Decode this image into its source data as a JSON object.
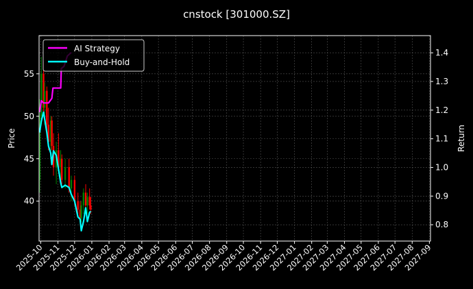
{
  "chart_data": {
    "type": "line",
    "title": "cnstock [301000.SZ]",
    "ylabel_left": "Price",
    "ylabel_right": "Return",
    "xlim": [
      "2025-09-28",
      "2027-09-03"
    ],
    "ylim_left": [
      35.3,
      59.5
    ],
    "ylim_right": [
      0.743,
      1.46
    ],
    "yticks_left": [
      40,
      45,
      50,
      55
    ],
    "yticks_right": [
      0.8,
      0.9,
      1.0,
      1.1,
      1.2,
      1.3,
      1.4
    ],
    "xticks": [
      "2025-10",
      "2025-11",
      "2025-12",
      "2026-01",
      "2026-02",
      "2026-03",
      "2026-04",
      "2026-05",
      "2026-06",
      "2026-07",
      "2026-08",
      "2026-09",
      "2026-10",
      "2026-11",
      "2026-12",
      "2027-01",
      "2027-02",
      "2027-03",
      "2027-04",
      "2027-05",
      "2027-06",
      "2027-07",
      "2027-08",
      "2027-09"
    ],
    "grid": true,
    "legend_placement": "top-left",
    "colors": {
      "background": "#000000",
      "up": "#008000",
      "down": "#ff0000",
      "ai": "#ff00ff",
      "bh": "#00ffff",
      "grid": "#555555"
    },
    "candles": [
      {
        "date": "2025-09-29",
        "o": 42.5,
        "h": 52,
        "l": 41,
        "c": 50
      },
      {
        "date": "2025-10-02",
        "o": 50,
        "h": 57,
        "l": 49,
        "c": 55
      },
      {
        "date": "2025-10-06",
        "o": 55,
        "h": 56.5,
        "l": 50,
        "c": 51
      },
      {
        "date": "2025-10-08",
        "o": 51,
        "h": 54,
        "l": 49,
        "c": 53
      },
      {
        "date": "2025-10-12",
        "o": 53,
        "h": 53.5,
        "l": 48,
        "c": 49
      },
      {
        "date": "2025-10-15",
        "o": 49,
        "h": 51,
        "l": 46,
        "c": 47
      },
      {
        "date": "2025-10-19",
        "o": 47,
        "h": 50,
        "l": 45,
        "c": 49.5
      },
      {
        "date": "2025-10-21",
        "o": 49.5,
        "h": 50,
        "l": 46,
        "c": 46.5
      },
      {
        "date": "2025-10-24",
        "o": 46.5,
        "h": 48,
        "l": 43,
        "c": 44
      },
      {
        "date": "2025-10-29",
        "o": 44,
        "h": 47,
        "l": 42,
        "c": 46
      },
      {
        "date": "2025-11-02",
        "o": 46,
        "h": 48,
        "l": 43.5,
        "c": 44
      },
      {
        "date": "2025-11-06",
        "o": 44,
        "h": 46,
        "l": 42,
        "c": 45
      },
      {
        "date": "2025-11-08",
        "o": 45,
        "h": 45.5,
        "l": 42,
        "c": 42.5
      },
      {
        "date": "2025-11-14",
        "o": 42.5,
        "h": 45,
        "l": 41.5,
        "c": 44
      },
      {
        "date": "2025-11-21",
        "o": 44,
        "h": 45,
        "l": 41,
        "c": 41.5
      },
      {
        "date": "2025-11-25",
        "o": 41.5,
        "h": 43,
        "l": 40,
        "c": 42.5
      },
      {
        "date": "2025-12-01",
        "o": 42.5,
        "h": 43,
        "l": 39.5,
        "c": 40
      },
      {
        "date": "2025-12-07",
        "o": 40,
        "h": 41,
        "l": 38.5,
        "c": 39
      },
      {
        "date": "2025-12-11",
        "o": 39,
        "h": 40,
        "l": 37.5,
        "c": 38
      },
      {
        "date": "2025-12-13",
        "o": 38,
        "h": 40,
        "l": 37.5,
        "c": 39.5
      },
      {
        "date": "2025-12-17",
        "o": 39.5,
        "h": 41.5,
        "l": 38.5,
        "c": 41
      },
      {
        "date": "2025-12-21",
        "o": 41,
        "h": 42,
        "l": 39,
        "c": 39.5
      },
      {
        "date": "2025-12-24",
        "o": 39.5,
        "h": 41,
        "l": 38.5,
        "c": 40.5
      },
      {
        "date": "2025-12-28",
        "o": 40.5,
        "h": 41.5,
        "l": 39,
        "c": 39.5
      },
      {
        "date": "2025-12-30",
        "o": 39.5,
        "h": 40.5,
        "l": 38.5,
        "c": 39
      }
    ],
    "series": [
      {
        "name": "AI Strategy",
        "axis": "right",
        "x": [
          "2025-09-29",
          "2025-10-02",
          "2025-10-06",
          "2025-10-15",
          "2025-10-21",
          "2025-10-23",
          "2025-11-06",
          "2025-11-07",
          "2025-11-12",
          "2025-11-18",
          "2025-11-25"
        ],
        "y": [
          1.193,
          1.233,
          1.225,
          1.225,
          1.241,
          1.277,
          1.277,
          1.345,
          1.353,
          1.389,
          1.401
        ]
      },
      {
        "name": "Buy-and-Hold",
        "axis": "right",
        "x": [
          "2025-09-29",
          "2025-10-02",
          "2025-10-06",
          "2025-10-08",
          "2025-10-12",
          "2025-10-15",
          "2025-10-19",
          "2025-10-21",
          "2025-10-24",
          "2025-10-29",
          "2025-11-02",
          "2025-11-06",
          "2025-11-08",
          "2025-11-14",
          "2025-11-21",
          "2025-11-25",
          "2025-12-01",
          "2025-12-07",
          "2025-12-11",
          "2025-12-13",
          "2025-12-17",
          "2025-12-21",
          "2025-12-24",
          "2025-12-28",
          "2025-12-30"
        ],
        "y": [
          1.122,
          1.161,
          1.193,
          1.17,
          1.122,
          1.074,
          1.05,
          1.01,
          1.058,
          1.042,
          0.994,
          0.946,
          0.93,
          0.938,
          0.93,
          0.906,
          0.882,
          0.827,
          0.819,
          0.779,
          0.811,
          0.859,
          0.811,
          0.843,
          0.847
        ]
      }
    ]
  }
}
